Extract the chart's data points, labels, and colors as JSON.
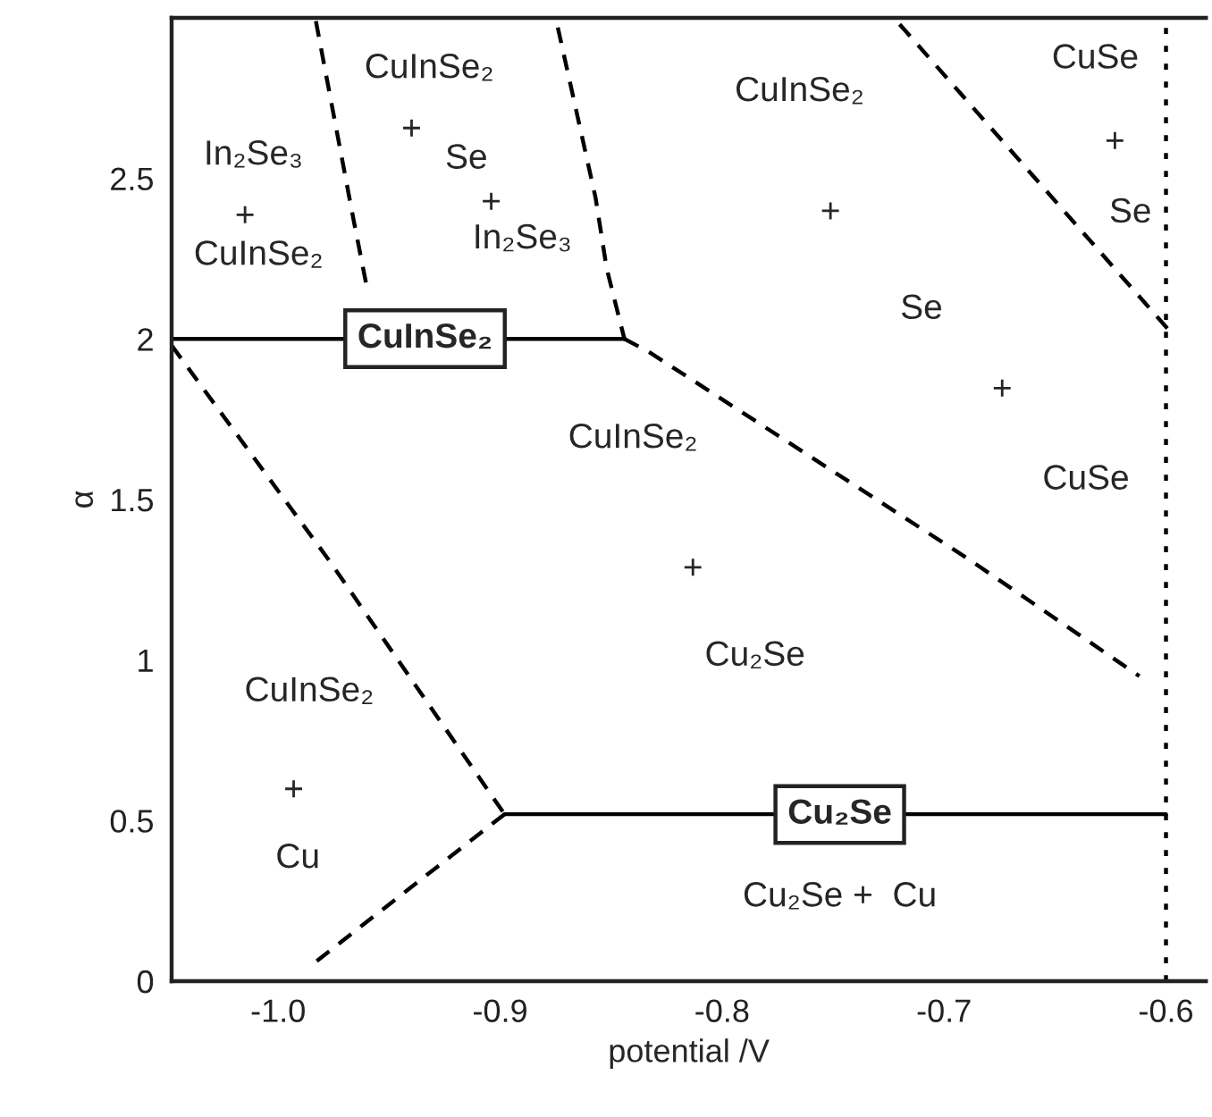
{
  "chart_data": {
    "type": "line",
    "xlabel": "potential /V",
    "ylabel": "α",
    "xlim": [
      -1.048,
      -0.582
    ],
    "ylim": [
      0,
      3.0
    ],
    "xticks": [
      {
        "value": -1.0,
        "label": "-1.0"
      },
      {
        "value": -0.9,
        "label": "-0.9"
      },
      {
        "value": -0.8,
        "label": "-0.8"
      },
      {
        "value": -0.7,
        "label": "-0.7"
      },
      {
        "value": -0.6,
        "label": "-0.6"
      }
    ],
    "yticks": [
      0,
      0.5,
      1,
      1.5,
      2,
      2.5
    ],
    "grid": false,
    "legend": false,
    "marker": "none",
    "series": [
      {
        "color": "#000000",
        "line_style": "solid",
        "x": [
          -1.048,
          -0.844
        ],
        "values": [
          2.0,
          2.0
        ]
      },
      {
        "color": "#000000",
        "line_style": "dashed",
        "x": [
          -0.983,
          -0.966,
          -0.96
        ],
        "values": [
          2.99,
          2.37,
          2.16
        ]
      },
      {
        "color": "#000000",
        "line_style": "dashed",
        "x": [
          -0.874,
          -0.857,
          -0.852,
          -0.844
        ],
        "values": [
          2.97,
          2.44,
          2.22,
          2.0
        ]
      },
      {
        "color": "#000000",
        "line_style": "dashed",
        "x": [
          -0.844,
          -0.833,
          -0.688,
          -0.612
        ],
        "values": [
          2.0,
          1.96,
          1.31,
          0.95
        ]
      },
      {
        "color": "#000000",
        "line_style": "dashed",
        "x": [
          -0.72,
          -0.599
        ],
        "values": [
          2.98,
          2.03
        ]
      },
      {
        "color": "#000000",
        "line_style": "dotted",
        "x": [
          -0.6,
          -0.6
        ],
        "values": [
          0,
          3.0
        ]
      },
      {
        "color": "#000000",
        "line_style": "dashed",
        "x": [
          -1.048,
          -0.977,
          -0.94,
          -0.898
        ],
        "values": [
          1.98,
          1.31,
          0.94,
          0.52
        ]
      },
      {
        "color": "#000000",
        "line_style": "dashed",
        "x": [
          -0.898,
          -0.985
        ],
        "values": [
          0.52,
          0.05
        ]
      },
      {
        "color": "#000000",
        "line_style": "solid",
        "x": [
          -0.898,
          -0.6
        ],
        "values": [
          0.52,
          0.52
        ]
      }
    ],
    "annotations": [
      "CuInSe₂",
      "+",
      "Se",
      "+",
      "In₂Se₃",
      "In₂Se₃",
      "+",
      "CuInSe₂",
      "CuInSe₂",
      "CuInSe₂",
      "+",
      "Se",
      "+",
      "CuSe",
      "CuSe",
      "+",
      "Se",
      "CuInSe₂",
      "+",
      "Cu₂Se",
      "Cu₂Se",
      "Cu₂Se +  Cu",
      "CuInSe₂",
      "+",
      "Cu"
    ]
  }
}
